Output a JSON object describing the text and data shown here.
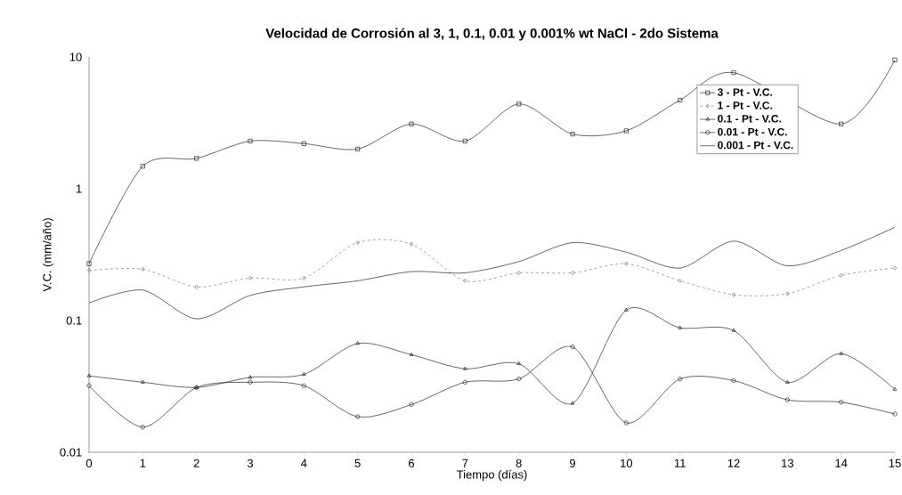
{
  "chart_data": {
    "type": "line",
    "title": "Velocidad de Corrosión al 3, 1, 0.1, 0.01 y 0.001% wt NaCl - 2do Sistema",
    "xlabel": "Tiempo (días)",
    "ylabel": "V.C. (mm/año)",
    "x": [
      0,
      1,
      2,
      3,
      4,
      5,
      6,
      7,
      8,
      9,
      10,
      11,
      12,
      13,
      14,
      15
    ],
    "xlim": [
      0,
      15
    ],
    "xticks": [
      0,
      1,
      2,
      3,
      4,
      5,
      6,
      7,
      8,
      9,
      10,
      11,
      12,
      13,
      14,
      15
    ],
    "ylim": [
      0.01,
      10
    ],
    "yticks": [
      0.01,
      0.1,
      1,
      10
    ],
    "log": "y",
    "grid": false,
    "legend": "top right",
    "series": [
      {
        "name": "3 - Pt - V.C.",
        "color": "#000000",
        "marker": "square",
        "line_style": "solid",
        "values": [
          0.27,
          1.48,
          1.7,
          2.3,
          2.2,
          2.0,
          3.1,
          2.3,
          4.4,
          2.6,
          2.75,
          4.7,
          7.6,
          null,
          3.1,
          9.5
        ]
      },
      {
        "name": "1 - Pt - V.C.",
        "color": "#666666",
        "marker": "diamond",
        "line_style": "dashed",
        "values": [
          0.24,
          0.245,
          0.18,
          0.21,
          0.21,
          0.39,
          0.38,
          0.2,
          0.23,
          0.23,
          0.27,
          0.2,
          0.157,
          0.16,
          0.22,
          0.25
        ]
      },
      {
        "name": "0.1 - Pt - V.C.",
        "color": "#000000",
        "marker": "triangle",
        "line_style": "solid",
        "values": [
          0.038,
          0.034,
          0.031,
          0.037,
          0.039,
          0.067,
          0.055,
          0.043,
          0.047,
          0.0235,
          0.12,
          0.088,
          0.084,
          0.034,
          0.056,
          0.03
        ]
      },
      {
        "name": "0.01 - Pt - V.C.",
        "color": "#000000",
        "marker": "circle",
        "line_style": "solid",
        "values": [
          0.032,
          0.0155,
          0.031,
          0.034,
          0.032,
          0.0186,
          0.023,
          0.034,
          0.036,
          0.063,
          0.0167,
          0.036,
          0.035,
          0.025,
          0.024,
          0.0195
        ]
      },
      {
        "name": "0.001 - Pt - V.C.",
        "color": "#000000",
        "marker": "none",
        "line_style": "solid",
        "values": [
          0.136,
          0.17,
          0.103,
          0.155,
          0.18,
          0.2,
          0.235,
          0.23,
          0.28,
          0.39,
          0.33,
          0.25,
          0.4,
          0.26,
          0.34,
          0.51
        ]
      }
    ]
  }
}
